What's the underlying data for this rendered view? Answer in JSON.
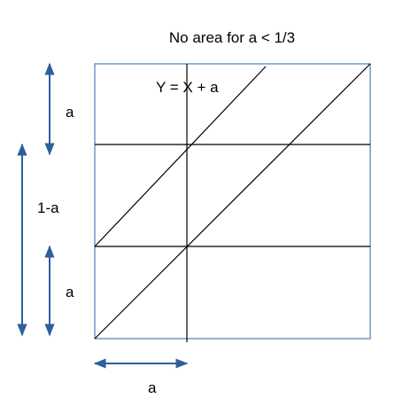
{
  "diagram": {
    "title": "No area for a < 1/3",
    "equation_label": "Y = X + a",
    "label_top_a": "a",
    "label_one_minus_a": "1-a",
    "label_bottom_a": "a",
    "label_horizontal_a": "a",
    "colors": {
      "frame": "#4a7ebb",
      "arrow": "#2e5f9c",
      "line": "#000000"
    }
  }
}
